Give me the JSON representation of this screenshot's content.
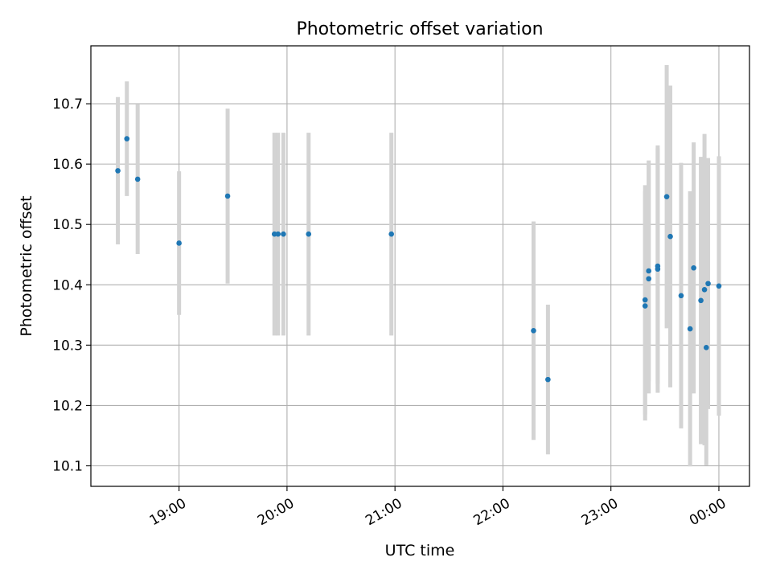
{
  "chart_data": {
    "type": "scatter",
    "title": "Photometric offset variation",
    "xlabel": "UTC time",
    "ylabel": "Photometric offset",
    "x_unit": "UTC time (HH:MM)",
    "xlim": [
      "18:11",
      "00:17"
    ],
    "ylim": [
      10.066,
      10.796
    ],
    "x_ticks": [
      "19:00",
      "20:00",
      "21:00",
      "22:00",
      "23:00",
      "00:00"
    ],
    "y_ticks": [
      "10.1",
      "10.2",
      "10.3",
      "10.4",
      "10.5",
      "10.6",
      "10.7"
    ],
    "grid": true,
    "marker_color": "#1f77b4",
    "errorbar_color": "#d3d3d3",
    "points": [
      {
        "time": "18:26",
        "value": 10.589,
        "err": 0.122
      },
      {
        "time": "18:31",
        "value": 10.642,
        "err": 0.095
      },
      {
        "time": "18:37",
        "value": 10.575,
        "err": 0.124
      },
      {
        "time": "19:00",
        "value": 10.469,
        "err": 0.119
      },
      {
        "time": "19:27",
        "value": 10.547,
        "err": 0.145
      },
      {
        "time": "19:53",
        "value": 10.484,
        "err": 0.168
      },
      {
        "time": "19:55",
        "value": 10.484,
        "err": 0.168
      },
      {
        "time": "19:58",
        "value": 10.484,
        "err": 0.168
      },
      {
        "time": "20:12",
        "value": 10.484,
        "err": 0.168
      },
      {
        "time": "20:58",
        "value": 10.484,
        "err": 0.168
      },
      {
        "time": "22:17",
        "value": 10.324,
        "err": 0.181
      },
      {
        "time": "22:25",
        "value": 10.243,
        "err": 0.124
      },
      {
        "time": "23:19",
        "value": 10.365,
        "err": 0.19
      },
      {
        "time": "23:19",
        "value": 10.375,
        "err": 0.19
      },
      {
        "time": "23:21",
        "value": 10.41,
        "err": 0.19
      },
      {
        "time": "23:21",
        "value": 10.423,
        "err": 0.183
      },
      {
        "time": "23:26",
        "value": 10.431,
        "err": 0.195
      },
      {
        "time": "23:26",
        "value": 10.426,
        "err": 0.205
      },
      {
        "time": "23:31",
        "value": 10.546,
        "err": 0.218
      },
      {
        "time": "23:33",
        "value": 10.48,
        "err": 0.25
      },
      {
        "time": "23:39",
        "value": 10.382,
        "err": 0.22
      },
      {
        "time": "23:44",
        "value": 10.327,
        "err": 0.228
      },
      {
        "time": "23:46",
        "value": 10.428,
        "err": 0.208
      },
      {
        "time": "23:50",
        "value": 10.374,
        "err": 0.238
      },
      {
        "time": "23:52",
        "value": 10.392,
        "err": 0.258
      },
      {
        "time": "23:53",
        "value": 10.296,
        "err": 0.195
      },
      {
        "time": "23:54",
        "value": 10.402,
        "err": 0.208
      },
      {
        "time": "00:00",
        "value": 10.398,
        "err": 0.215
      }
    ]
  }
}
